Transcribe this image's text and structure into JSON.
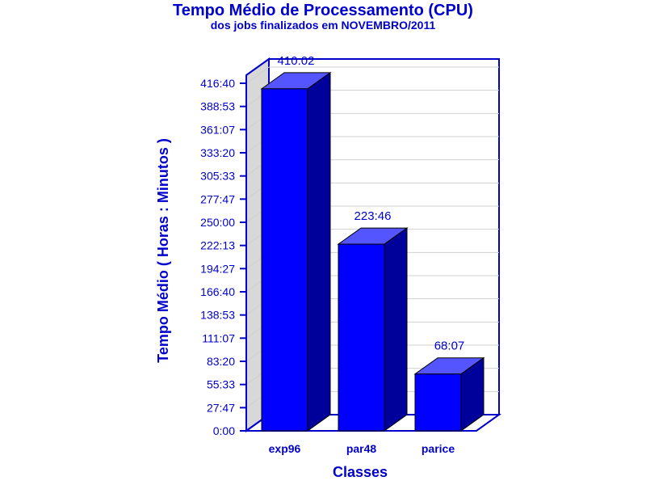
{
  "chart_data": {
    "type": "bar",
    "title": "Tempo Médio de Processamento (CPU)",
    "subtitle": "dos jobs finalizados em NOVEMBRO/2011",
    "xlabel": "Classes",
    "ylabel": "Tempo Médio ( Horas : Minutos )",
    "categories": [
      "exp96",
      "par48",
      "parice"
    ],
    "values": [
      410.0333,
      223.7667,
      68.1167
    ],
    "value_labels": [
      "410:02",
      "223:46",
      "68:07"
    ],
    "ylim": [
      0,
      416.6667
    ],
    "yticks": [
      0,
      27.7778,
      55.5556,
      83.3333,
      111.1111,
      138.8889,
      166.6667,
      194.4444,
      222.2222,
      250,
      277.7778,
      305.5556,
      333.3333,
      361.1111,
      388.8889,
      416.6667
    ],
    "ytick_labels": [
      "0:00",
      "27:47",
      "55:33",
      "83:20",
      "111:07",
      "138:53",
      "166:40",
      "194:27",
      "222:13",
      "250:00",
      "277:47",
      "305:33",
      "333:20",
      "361:07",
      "388:53",
      "416:40"
    ],
    "grid": true,
    "bar_3d": true,
    "colors": {
      "bar_front": "#0000ff",
      "bar_side": "#00009a",
      "bar_top": "#5555ff",
      "axis": "#0000cc",
      "wall": "#d8d8d8",
      "grid": "#d0d0d0"
    }
  }
}
